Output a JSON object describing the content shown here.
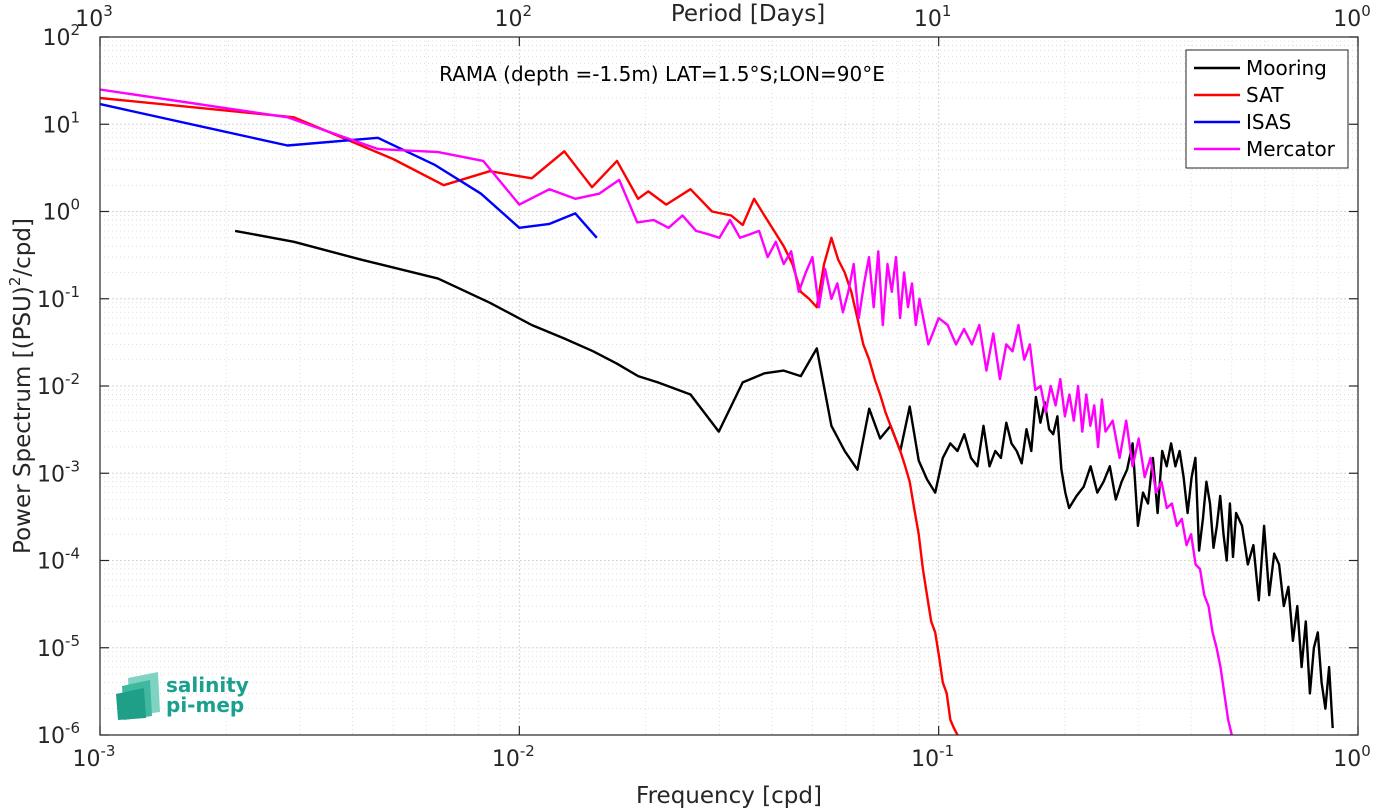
{
  "chart_data": {
    "type": "line",
    "title": "",
    "annotation": "RAMA (depth =-1.5m) LAT=1.5°S;LON=90°E",
    "xlabel": "Frequency [cpd]",
    "ylabel": "Power Spectrum [(PSU)²/cpd]",
    "ylabel_parts": {
      "pre": "Power Spectrum [(PSU)",
      "sup": "2",
      "post": "/cpd]"
    },
    "top_xlabel": "Period [Days]",
    "xscale": "log",
    "yscale": "log",
    "xlim": [
      0.001,
      1
    ],
    "ylim": [
      1e-06,
      100
    ],
    "grid": true,
    "legend_position": "top-right",
    "x_ticks": [
      {
        "base": "10",
        "exp": "-3",
        "value": 0.001
      },
      {
        "base": "10",
        "exp": "-2",
        "value": 0.01
      },
      {
        "base": "10",
        "exp": "-1",
        "value": 0.1
      },
      {
        "base": "10",
        "exp": "0",
        "value": 1
      }
    ],
    "top_ticks": [
      {
        "base": "10",
        "exp": "3",
        "value": 0.001
      },
      {
        "base": "10",
        "exp": "2",
        "value": 0.01
      },
      {
        "base": "10",
        "exp": "1",
        "value": 0.1
      },
      {
        "base": "10",
        "exp": "0",
        "value": 1
      }
    ],
    "y_ticks": [
      {
        "base": "10",
        "exp": "-6",
        "value": 1e-06
      },
      {
        "base": "10",
        "exp": "-5",
        "value": 1e-05
      },
      {
        "base": "10",
        "exp": "-4",
        "value": 0.0001
      },
      {
        "base": "10",
        "exp": "-3",
        "value": 0.001
      },
      {
        "base": "10",
        "exp": "-2",
        "value": 0.01
      },
      {
        "base": "10",
        "exp": "-1",
        "value": 0.1
      },
      {
        "base": "10",
        "exp": "0",
        "value": 1
      },
      {
        "base": "10",
        "exp": "1",
        "value": 10
      },
      {
        "base": "10",
        "exp": "2",
        "value": 100
      }
    ],
    "series": [
      {
        "name": "Mooring",
        "color": "#000000",
        "x": [
          0.0021,
          0.0029,
          0.0042,
          0.0064,
          0.0085,
          0.0107,
          0.0128,
          0.015,
          0.0171,
          0.0192,
          0.0214,
          0.0256,
          0.0299,
          0.0341,
          0.0384,
          0.0427,
          0.0469,
          0.0512,
          0.0555,
          0.0597,
          0.064,
          0.0683,
          0.0725,
          0.0768,
          0.081,
          0.0853,
          0.0896,
          0.0938,
          0.0981,
          0.1023,
          0.1066,
          0.1109,
          0.1151,
          0.1194,
          0.1237,
          0.1279,
          0.1322,
          0.1365,
          0.1407,
          0.145,
          0.1492,
          0.1535,
          0.1578,
          0.162,
          0.1663,
          0.1706,
          0.1748,
          0.1791,
          0.1834,
          0.1876,
          0.1919,
          0.1962,
          0.2004,
          0.2047,
          0.2133,
          0.2218,
          0.2303,
          0.2389,
          0.2474,
          0.2559,
          0.2645,
          0.273,
          0.2815,
          0.29,
          0.2986,
          0.3071,
          0.3156,
          0.3242,
          0.3327,
          0.3412,
          0.3498,
          0.3583,
          0.3668,
          0.3754,
          0.3839,
          0.3924,
          0.401,
          0.4095,
          0.418,
          0.4266,
          0.4351,
          0.4436,
          0.4522,
          0.4607,
          0.4692,
          0.4778,
          0.4863,
          0.4948,
          0.5034,
          0.5119,
          0.5289,
          0.546,
          0.5631,
          0.5801,
          0.5972,
          0.6142,
          0.6313,
          0.6484,
          0.6654,
          0.6825,
          0.6996,
          0.7166,
          0.7337,
          0.7507,
          0.7678,
          0.7849,
          0.8019,
          0.819,
          0.8361,
          0.8531,
          0.8702
        ],
        "y": [
          0.6,
          0.45,
          0.28,
          0.17,
          0.09,
          0.05,
          0.035,
          0.025,
          0.018,
          0.013,
          0.011,
          0.008,
          0.003,
          0.011,
          0.014,
          0.015,
          0.013,
          0.027,
          0.0035,
          0.0018,
          0.0011,
          0.0055,
          0.0025,
          0.0035,
          0.0018,
          0.0058,
          0.0014,
          0.00085,
          0.0006,
          0.0015,
          0.0022,
          0.0018,
          0.0028,
          0.0015,
          0.0012,
          0.0035,
          0.0012,
          0.0018,
          0.0015,
          0.0038,
          0.0022,
          0.0018,
          0.0013,
          0.0032,
          0.0018,
          0.0075,
          0.0038,
          0.0065,
          0.0032,
          0.0028,
          0.0045,
          0.0011,
          0.0006,
          0.0004,
          0.00055,
          0.0007,
          0.0012,
          0.0006,
          0.0008,
          0.0012,
          0.0005,
          0.0008,
          0.0011,
          0.0022,
          0.00025,
          0.0006,
          0.00045,
          0.0015,
          0.00035,
          0.0018,
          0.0012,
          0.0022,
          0.0012,
          0.0018,
          0.0009,
          0.00035,
          0.0009,
          0.0015,
          0.00013,
          0.0003,
          0.0008,
          0.00045,
          0.00014,
          0.00025,
          0.00055,
          0.0002,
          0.0001,
          0.00045,
          0.00011,
          0.00035,
          0.00025,
          9e-05,
          0.00015,
          3.5e-05,
          0.00025,
          4e-05,
          0.00012,
          9e-05,
          3e-05,
          5e-05,
          1.2e-05,
          3e-05,
          6e-06,
          2e-05,
          3e-06,
          1e-05,
          1.5e-05,
          4e-06,
          2e-06,
          6e-06,
          1.2e-06
        ]
      },
      {
        "name": "SAT",
        "color": "#ff0000",
        "x": [
          0.001,
          0.0029,
          0.005,
          0.0066,
          0.0085,
          0.0107,
          0.0128,
          0.0149,
          0.0171,
          0.0192,
          0.0203,
          0.0224,
          0.0256,
          0.0288,
          0.032,
          0.0341,
          0.0363,
          0.0384,
          0.0405,
          0.0427,
          0.0448,
          0.0469,
          0.0491,
          0.0512,
          0.0533,
          0.0555,
          0.0576,
          0.0597,
          0.0619,
          0.064,
          0.0661,
          0.0683,
          0.0704,
          0.0725,
          0.0747,
          0.0768,
          0.0789,
          0.081,
          0.0832,
          0.0853,
          0.0874,
          0.0896,
          0.0917,
          0.0938,
          0.096,
          0.0981,
          0.1002,
          0.1023,
          0.1045,
          0.1066,
          0.1087,
          0.1109
        ],
        "y": [
          20,
          12,
          4,
          2.0,
          2.9,
          2.4,
          4.9,
          1.9,
          3.8,
          1.4,
          1.7,
          1.2,
          1.8,
          1.0,
          0.9,
          0.7,
          1.4,
          0.9,
          0.6,
          0.4,
          0.25,
          0.12,
          0.1,
          0.08,
          0.25,
          0.5,
          0.28,
          0.2,
          0.12,
          0.06,
          0.03,
          0.02,
          0.012,
          0.008,
          0.005,
          0.0035,
          0.0025,
          0.0018,
          0.0012,
          0.0008,
          0.0004,
          0.0002,
          8e-05,
          4e-05,
          2e-05,
          1.5e-05,
          8e-06,
          4e-06,
          3e-06,
          1.5e-06,
          1.2e-06,
          1e-06
        ]
      },
      {
        "name": "ISAS",
        "color": "#0000ff",
        "x": [
          0.001,
          0.0028,
          0.0046,
          0.0063,
          0.0081,
          0.01,
          0.0118,
          0.0136,
          0.0153
        ],
        "y": [
          17,
          5.7,
          7.0,
          3.4,
          1.6,
          0.65,
          0.72,
          0.95,
          0.5
        ]
      },
      {
        "name": "Mercator",
        "color": "#ff00ff",
        "x": [
          0.001,
          0.0028,
          0.0046,
          0.0064,
          0.0082,
          0.01,
          0.0118,
          0.0136,
          0.0155,
          0.0173,
          0.0191,
          0.0209,
          0.0227,
          0.0245,
          0.0264,
          0.0282,
          0.03,
          0.0318,
          0.0336,
          0.0355,
          0.0373,
          0.0391,
          0.0409,
          0.0427,
          0.0445,
          0.0464,
          0.0482,
          0.05,
          0.0518,
          0.0536,
          0.0555,
          0.0573,
          0.0591,
          0.0609,
          0.0627,
          0.0645,
          0.0664,
          0.0682,
          0.07,
          0.0718,
          0.0736,
          0.0755,
          0.0773,
          0.0791,
          0.0809,
          0.0827,
          0.0845,
          0.0864,
          0.0882,
          0.09,
          0.0945,
          0.1,
          0.105,
          0.11,
          0.115,
          0.12,
          0.125,
          0.13,
          0.135,
          0.14,
          0.145,
          0.15,
          0.155,
          0.16,
          0.165,
          0.17,
          0.175,
          0.18,
          0.185,
          0.19,
          0.195,
          0.2,
          0.205,
          0.21,
          0.215,
          0.22,
          0.225,
          0.23,
          0.235,
          0.24,
          0.245,
          0.25,
          0.26,
          0.27,
          0.28,
          0.29,
          0.3,
          0.31,
          0.32,
          0.33,
          0.34,
          0.35,
          0.36,
          0.37,
          0.38,
          0.39,
          0.4,
          0.41,
          0.42,
          0.43,
          0.44,
          0.45,
          0.46,
          0.47,
          0.48,
          0.49,
          0.5
        ],
        "y": [
          25,
          12,
          5.2,
          4.8,
          3.8,
          1.2,
          1.8,
          1.4,
          1.6,
          2.3,
          0.75,
          0.8,
          0.65,
          0.9,
          0.6,
          0.55,
          0.5,
          0.8,
          0.5,
          0.55,
          0.6,
          0.3,
          0.45,
          0.25,
          0.35,
          0.12,
          0.2,
          0.3,
          0.08,
          0.22,
          0.1,
          0.15,
          0.07,
          0.12,
          0.25,
          0.06,
          0.15,
          0.3,
          0.08,
          0.35,
          0.05,
          0.25,
          0.12,
          0.3,
          0.06,
          0.2,
          0.08,
          0.15,
          0.05,
          0.1,
          0.03,
          0.06,
          0.05,
          0.03,
          0.045,
          0.03,
          0.05,
          0.015,
          0.04,
          0.012,
          0.03,
          0.025,
          0.05,
          0.02,
          0.03,
          0.009,
          0.01,
          0.005,
          0.01,
          0.006,
          0.012,
          0.0045,
          0.008,
          0.004,
          0.01,
          0.003,
          0.008,
          0.0035,
          0.006,
          0.002,
          0.007,
          0.003,
          0.004,
          0.0015,
          0.004,
          0.0012,
          0.0025,
          0.0009,
          0.0015,
          0.0006,
          0.0008,
          0.0004,
          0.00045,
          0.00025,
          0.0003,
          0.00015,
          0.0002,
          9e-05,
          8e-05,
          4e-05,
          3e-05,
          1.5e-05,
          1e-05,
          6e-06,
          3e-06,
          1.5e-06,
          1e-06
        ]
      }
    ]
  },
  "logo": {
    "line1": "salinity",
    "line2": "pi-mep"
  }
}
